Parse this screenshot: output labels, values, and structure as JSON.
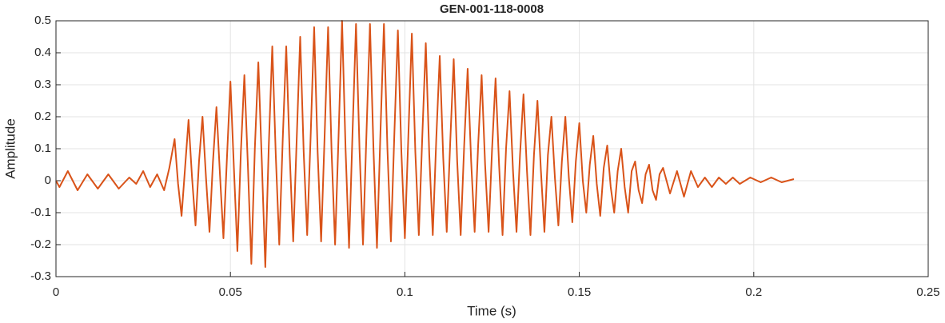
{
  "chart_data": {
    "type": "line",
    "title": "GEN-001-118-0008",
    "x_label": "Time (s)",
    "y_label": "Amplitude",
    "color": "#d95319",
    "grid": true,
    "xlim": [
      0,
      0.25
    ],
    "xticks": [
      0,
      0.05,
      0.1,
      0.15,
      0.2,
      0.25
    ],
    "ylim": [
      -0.3,
      0.5
    ],
    "yticks": [
      -0.3,
      -0.2,
      -0.1,
      0,
      0.1,
      0.2,
      0.3,
      0.4,
      0.5
    ],
    "x": [
      0,
      0.001,
      0.0034,
      0.0062,
      0.009,
      0.012,
      0.015,
      0.018,
      0.021,
      0.023,
      0.025,
      0.027,
      0.029,
      0.031,
      0.0325,
      0.034,
      0.035,
      0.036,
      0.037,
      0.038,
      0.039,
      0.04,
      0.041,
      0.042,
      0.043,
      0.044,
      0.045,
      0.046,
      0.047,
      0.048,
      0.049,
      0.05,
      0.051,
      0.052,
      0.053,
      0.054,
      0.055,
      0.056,
      0.057,
      0.058,
      0.059,
      0.06,
      0.061,
      0.062,
      0.063,
      0.064,
      0.065,
      0.066,
      0.067,
      0.068,
      0.069,
      0.07,
      0.071,
      0.072,
      0.073,
      0.074,
      0.075,
      0.076,
      0.077,
      0.078,
      0.079,
      0.08,
      0.081,
      0.082,
      0.083,
      0.084,
      0.085,
      0.086,
      0.087,
      0.088,
      0.089,
      0.09,
      0.091,
      0.092,
      0.093,
      0.094,
      0.095,
      0.096,
      0.097,
      0.098,
      0.099,
      0.1,
      0.101,
      0.102,
      0.103,
      0.104,
      0.105,
      0.106,
      0.107,
      0.108,
      0.109,
      0.11,
      0.111,
      0.112,
      0.113,
      0.114,
      0.115,
      0.116,
      0.117,
      0.118,
      0.119,
      0.12,
      0.121,
      0.122,
      0.123,
      0.124,
      0.125,
      0.126,
      0.127,
      0.128,
      0.129,
      0.13,
      0.131,
      0.132,
      0.133,
      0.134,
      0.135,
      0.136,
      0.137,
      0.138,
      0.139,
      0.14,
      0.141,
      0.142,
      0.143,
      0.144,
      0.145,
      0.146,
      0.147,
      0.148,
      0.149,
      0.15,
      0.151,
      0.152,
      0.153,
      0.154,
      0.155,
      0.156,
      0.157,
      0.158,
      0.159,
      0.16,
      0.161,
      0.162,
      0.163,
      0.164,
      0.165,
      0.166,
      0.167,
      0.168,
      0.169,
      0.17,
      0.171,
      0.172,
      0.173,
      0.174,
      0.176,
      0.178,
      0.18,
      0.182,
      0.184,
      0.186,
      0.188,
      0.19,
      0.192,
      0.194,
      0.196,
      0.199,
      0.202,
      0.205,
      0.208,
      0.2115
    ],
    "values": [
      0,
      -0.02,
      0.03,
      -0.03,
      0.02,
      -0.025,
      0.02,
      -0.025,
      0.01,
      -0.01,
      0.03,
      -0.02,
      0.02,
      -0.03,
      0.04,
      0.13,
      -0.01,
      -0.11,
      0.04,
      0.19,
      0.01,
      -0.14,
      0.06,
      0.2,
      0.01,
      -0.16,
      0.06,
      0.23,
      0.02,
      -0.18,
      0.07,
      0.31,
      0.04,
      -0.22,
      0.09,
      0.33,
      0.05,
      -0.26,
      0.1,
      0.37,
      0.06,
      -0.27,
      0.11,
      0.42,
      0.08,
      -0.2,
      0.13,
      0.42,
      0.08,
      -0.19,
      0.13,
      0.45,
      0.09,
      -0.17,
      0.14,
      0.48,
      0.09,
      -0.19,
      0.14,
      0.48,
      0.09,
      -0.2,
      0.14,
      0.5,
      0.1,
      -0.21,
      0.15,
      0.49,
      0.1,
      -0.2,
      0.15,
      0.49,
      0.1,
      -0.21,
      0.15,
      0.49,
      0.1,
      -0.19,
      0.15,
      0.47,
      0.09,
      -0.18,
      0.14,
      0.46,
      0.09,
      -0.17,
      0.14,
      0.43,
      0.08,
      -0.17,
      0.13,
      0.39,
      0.07,
      -0.16,
      0.12,
      0.38,
      0.06,
      -0.17,
      0.11,
      0.35,
      0.06,
      -0.16,
      0.11,
      0.33,
      0.05,
      -0.16,
      0.1,
      0.32,
      0.05,
      -0.17,
      0.1,
      0.28,
      0.03,
      -0.16,
      0.08,
      0.27,
      0.03,
      -0.17,
      0.08,
      0.25,
      0.03,
      -0.16,
      0.08,
      0.2,
      0.01,
      -0.14,
      0.06,
      0.2,
      0.01,
      -0.13,
      0.06,
      0.18,
      0,
      -0.1,
      0.05,
      0.14,
      -0.01,
      -0.11,
      0.04,
      0.11,
      -0.02,
      -0.1,
      0.03,
      0.1,
      -0.02,
      -0.1,
      0.03,
      0.06,
      -0.03,
      -0.07,
      0.02,
      0.05,
      -0.03,
      -0.06,
      0.02,
      0.04,
      -0.04,
      0.03,
      -0.05,
      0.03,
      -0.02,
      0.01,
      -0.02,
      0.01,
      -0.01,
      0.01,
      -0.01,
      0.01,
      -0.005,
      0.01,
      -0.005,
      0.005
    ]
  }
}
